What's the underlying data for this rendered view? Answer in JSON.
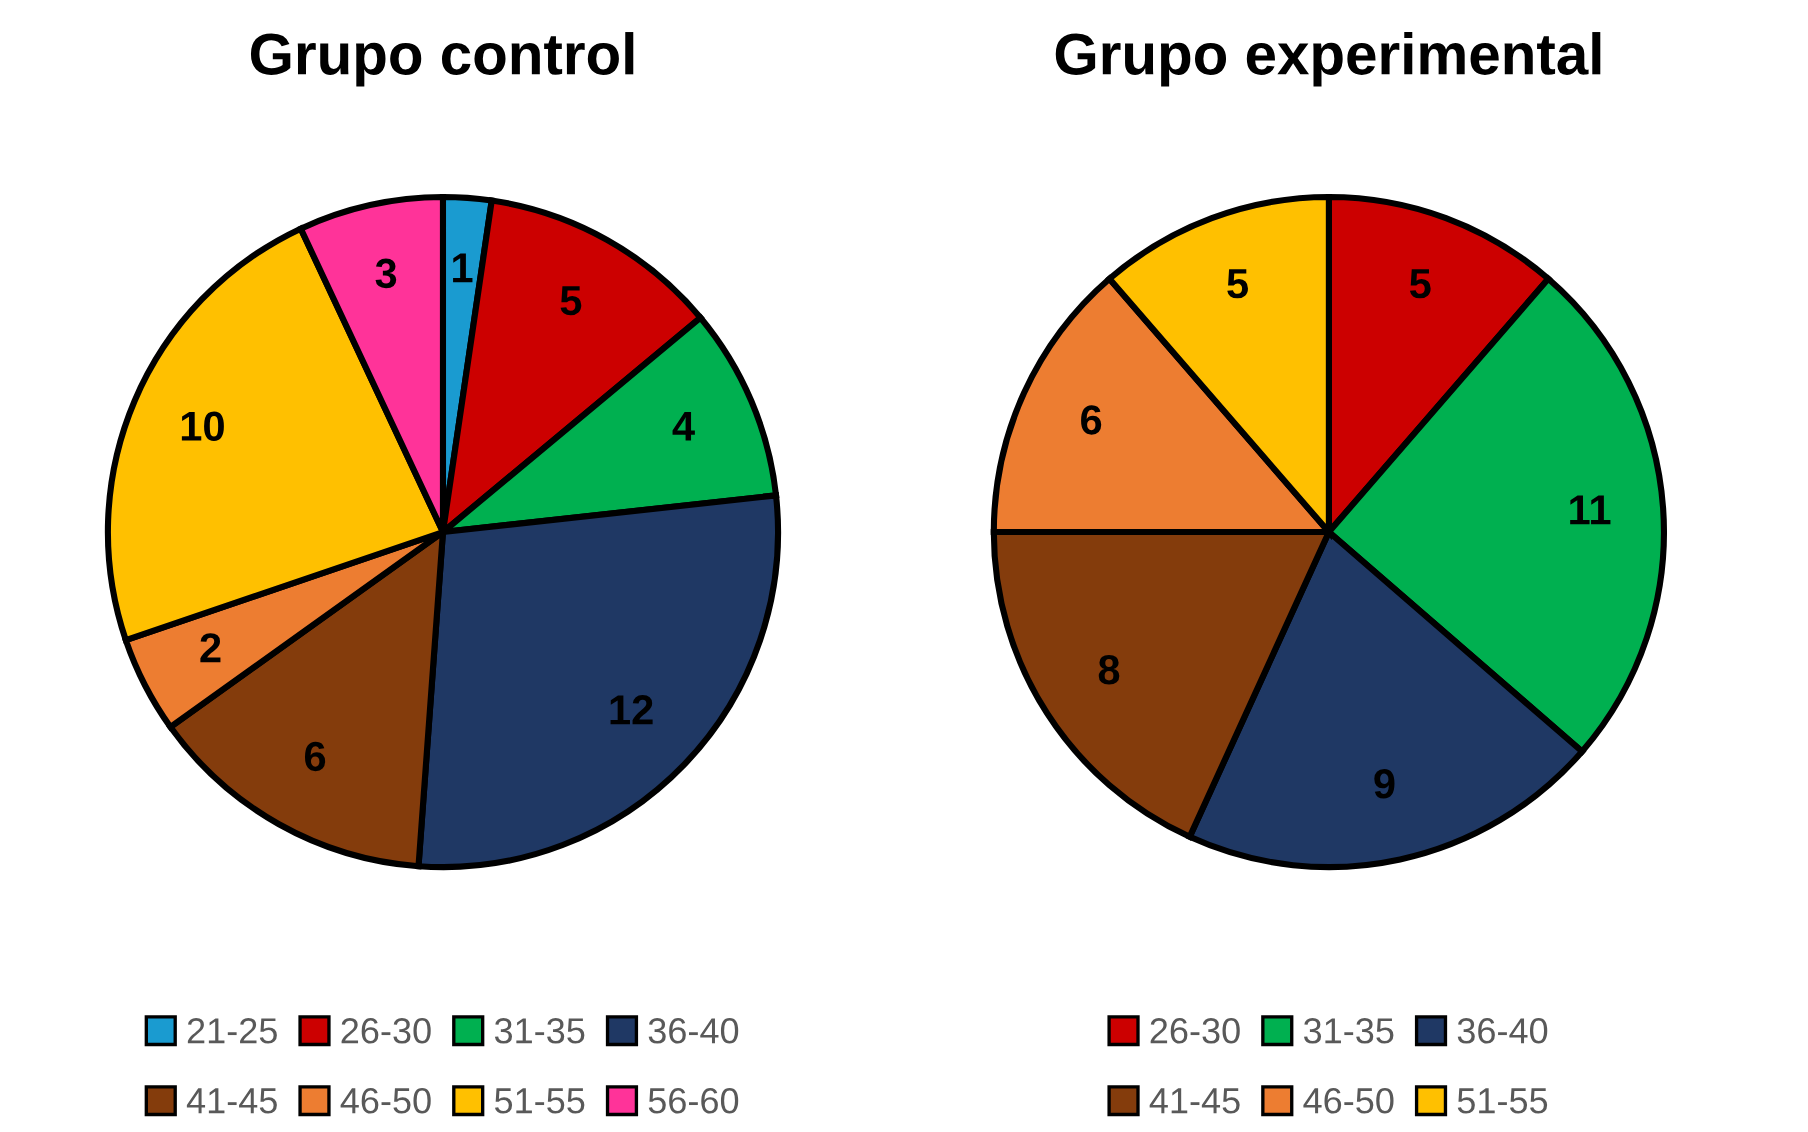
{
  "chart_data": [
    {
      "type": "pie",
      "title": "Grupo control",
      "categories": [
        "21-25",
        "26-30",
        "31-35",
        "36-40",
        "41-45",
        "46-50",
        "51-55",
        "56-60"
      ],
      "values": [
        1,
        5,
        4,
        12,
        6,
        2,
        10,
        3
      ],
      "colors": [
        "#1a9bd0",
        "#cc0000",
        "#00b050",
        "#1f3864",
        "#843c0c",
        "#ed7d31",
        "#ffc000",
        "#ff3399"
      ],
      "data_labels": true,
      "legend": "bottom"
    },
    {
      "type": "pie",
      "title": "Grupo experimental",
      "categories": [
        "26-30",
        "31-35",
        "36-40",
        "41-45",
        "46-50",
        "51-55"
      ],
      "values": [
        5,
        11,
        9,
        8,
        6,
        5
      ],
      "colors": [
        "#cc0000",
        "#00b050",
        "#1f3864",
        "#843c0c",
        "#ed7d31",
        "#ffc000"
      ],
      "data_labels": true,
      "legend": "bottom"
    }
  ]
}
